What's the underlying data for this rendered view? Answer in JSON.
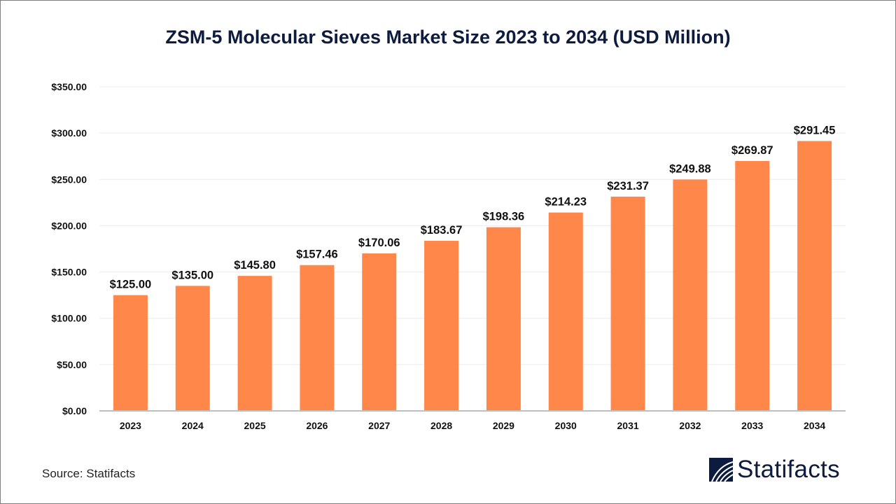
{
  "chart_data": {
    "type": "bar",
    "title": "ZSM-5 Molecular Sieves Market Size 2023 to 2034 (USD Million)",
    "xlabel": "",
    "ylabel": "",
    "categories": [
      "2023",
      "2024",
      "2025",
      "2026",
      "2027",
      "2028",
      "2029",
      "2030",
      "2031",
      "2032",
      "2033",
      "2034"
    ],
    "values": [
      125.0,
      135.0,
      145.8,
      157.46,
      170.06,
      183.67,
      198.36,
      214.23,
      231.37,
      249.88,
      269.87,
      291.45
    ],
    "value_labels": [
      "$125.00",
      "$135.00",
      "$145.80",
      "$157.46",
      "$170.06",
      "$183.67",
      "$198.36",
      "$214.23",
      "$231.37",
      "$249.88",
      "$269.87",
      "$291.45"
    ],
    "ylim": [
      0,
      350
    ],
    "yticks": [
      0,
      50,
      100,
      150,
      200,
      250,
      300,
      350
    ],
    "ytick_labels": [
      "$0.00",
      "$50.00",
      "$100.00",
      "$150.00",
      "$200.00",
      "$250.00",
      "$300.00",
      "$350.00"
    ],
    "grid": true,
    "legend": "none",
    "bar_color": "#ff8749"
  },
  "footer": {
    "source": "Source: Statifacts",
    "brand": "Statifacts"
  },
  "colors": {
    "title": "#0d1b3e",
    "brand": "#0d1b3e"
  }
}
